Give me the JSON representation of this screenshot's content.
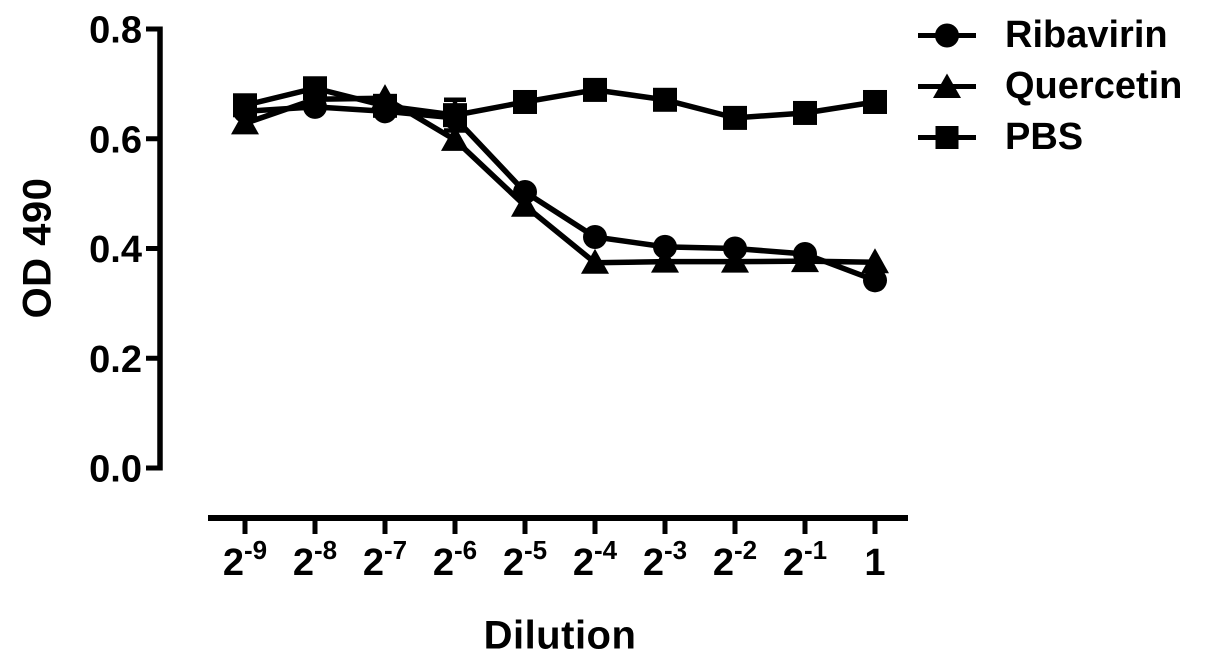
{
  "figure": {
    "background": "#ffffff",
    "ink_color": "#000000"
  },
  "chart_data": {
    "type": "line",
    "title": "",
    "xlabel": "Dilution",
    "ylabel": "OD 490",
    "ylim": [
      0.0,
      0.8
    ],
    "y_ticks": [
      0.0,
      0.2,
      0.4,
      0.6,
      0.8
    ],
    "categories": [
      "2^-9",
      "2^-8",
      "2^-7",
      "2^-6",
      "2^-5",
      "2^-4",
      "2^-3",
      "2^-2",
      "2^-1",
      "1"
    ],
    "x_tick_labels": [
      {
        "base": "2",
        "exp": "-9"
      },
      {
        "base": "2",
        "exp": "-8"
      },
      {
        "base": "2",
        "exp": "-7"
      },
      {
        "base": "2",
        "exp": "-6"
      },
      {
        "base": "2",
        "exp": "-5"
      },
      {
        "base": "2",
        "exp": "-4"
      },
      {
        "base": "2",
        "exp": "-3"
      },
      {
        "base": "2",
        "exp": "-2"
      },
      {
        "base": "2",
        "exp": "-1"
      },
      {
        "base": "1",
        "exp": ""
      }
    ],
    "grid": false,
    "legend_position": "top-right",
    "series": [
      {
        "name": "Ribavirin",
        "marker": "circle",
        "values": [
          0.65,
          0.658,
          0.65,
          0.638,
          0.503,
          0.421,
          0.403,
          0.4,
          0.39,
          0.342
        ]
      },
      {
        "name": "Quercetin",
        "marker": "triangle",
        "values": [
          0.628,
          0.672,
          0.674,
          0.598,
          0.478,
          0.374,
          0.376,
          0.376,
          0.377,
          0.375
        ]
      },
      {
        "name": "PBS",
        "marker": "square",
        "values": [
          0.661,
          0.692,
          0.66,
          0.643,
          0.667,
          0.689,
          0.671,
          0.638,
          0.647,
          0.667
        ],
        "error_bars": [
          {
            "index": 3,
            "value": 0.028
          }
        ]
      }
    ]
  },
  "legend": {
    "items": [
      {
        "label": "Ribavirin",
        "marker": "circle"
      },
      {
        "label": "Quercetin",
        "marker": "triangle"
      },
      {
        "label": "PBS",
        "marker": "square"
      }
    ]
  }
}
